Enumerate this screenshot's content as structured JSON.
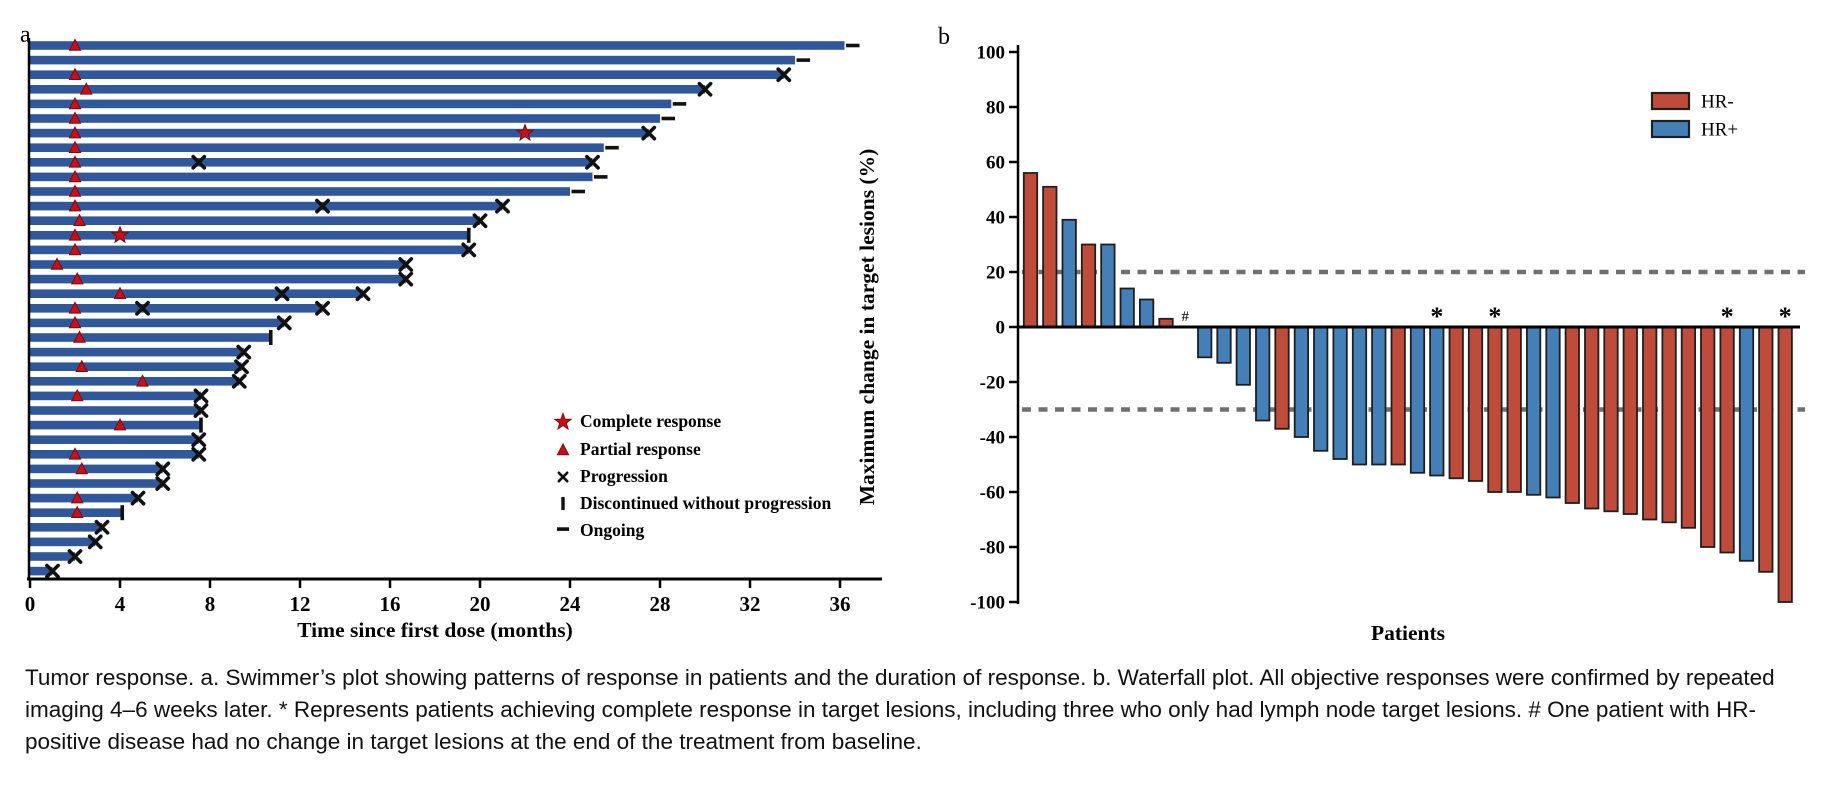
{
  "figure": {
    "panel_a_label": "a",
    "panel_b_label": "b"
  },
  "caption": "Tumor response. a. Swimmer’s plot showing patterns of response in patients and the duration of response. b. Waterfall plot. All objective responses were confirmed by repeated imaging 4–6 weeks later. * Represents patients achieving complete response in target lesions, including three who only had lymph node target lesions. # One patient with HR-positive disease had no change in target lesions at the end of the treatment from baseline.",
  "colors": {
    "swimmer_bar": "#31579B",
    "marker_red": "#C3121A",
    "marker_red_edge": "#7E090D",
    "marker_black": "#111111",
    "hr_neg": "#BF4B3B",
    "hr_pos": "#4480B7",
    "bar_outline": "#1F1F1F",
    "dashed_line": "#707070",
    "axis_black": "#000000"
  },
  "chart_data": [
    {
      "id": "swimmer",
      "type": "bar",
      "orientation": "horizontal",
      "xlabel": "Time since first dose (months)",
      "xlim": [
        0,
        38
      ],
      "xticks": [
        0,
        4,
        8,
        12,
        16,
        20,
        24,
        28,
        32,
        36
      ],
      "legend": [
        {
          "marker": "star",
          "label": "Complete response"
        },
        {
          "marker": "triangle",
          "label": "Partial response"
        },
        {
          "marker": "cross",
          "label": "Progression"
        },
        {
          "marker": "vbar",
          "label": "Discontinued without progression"
        },
        {
          "marker": "dash",
          "label": "Ongoing"
        }
      ],
      "patients": [
        {
          "duration": 36.2,
          "pr": 2,
          "cr": null,
          "prog": [],
          "end": "ongoing"
        },
        {
          "duration": 34.0,
          "pr": null,
          "cr": null,
          "prog": [],
          "end": "ongoing"
        },
        {
          "duration": 33.5,
          "pr": 2,
          "cr": null,
          "prog": [],
          "end": "prog"
        },
        {
          "duration": 30.0,
          "pr": 2.5,
          "cr": null,
          "prog": [],
          "end": "prog"
        },
        {
          "duration": 28.5,
          "pr": 2,
          "cr": null,
          "prog": [],
          "end": "ongoing"
        },
        {
          "duration": 28.0,
          "pr": 2,
          "cr": null,
          "prog": [],
          "end": "ongoing"
        },
        {
          "duration": 27.5,
          "pr": 2,
          "cr": 22,
          "prog": [],
          "end": "prog"
        },
        {
          "duration": 25.5,
          "pr": 2,
          "cr": null,
          "prog": [],
          "end": "ongoing"
        },
        {
          "duration": 25.0,
          "pr": 2,
          "cr": null,
          "prog": [
            7.5
          ],
          "end": "prog"
        },
        {
          "duration": 25.0,
          "pr": 2,
          "cr": null,
          "prog": [],
          "end": "ongoing"
        },
        {
          "duration": 24.0,
          "pr": 2,
          "cr": null,
          "prog": [],
          "end": "ongoing"
        },
        {
          "duration": 21.0,
          "pr": 2,
          "cr": null,
          "prog": [
            13
          ],
          "end": "prog"
        },
        {
          "duration": 20.0,
          "pr": 2.2,
          "cr": null,
          "prog": [],
          "end": "prog"
        },
        {
          "duration": 19.5,
          "pr": 2,
          "cr": 4,
          "prog": [],
          "end": "disc"
        },
        {
          "duration": 19.5,
          "pr": 2,
          "cr": null,
          "prog": [],
          "end": "prog"
        },
        {
          "duration": 16.7,
          "pr": 1.2,
          "cr": null,
          "prog": [],
          "end": "prog"
        },
        {
          "duration": 16.7,
          "pr": 2.1,
          "cr": null,
          "prog": [],
          "end": "prog"
        },
        {
          "duration": 14.8,
          "pr": 4,
          "cr": null,
          "prog": [
            11.2
          ],
          "end": "prog"
        },
        {
          "duration": 13.0,
          "pr": 2,
          "cr": null,
          "prog": [
            5
          ],
          "end": "prog"
        },
        {
          "duration": 11.3,
          "pr": 2,
          "cr": null,
          "prog": [],
          "end": "prog"
        },
        {
          "duration": 10.7,
          "pr": 2.2,
          "cr": null,
          "prog": [],
          "end": "disc"
        },
        {
          "duration": 9.5,
          "pr": null,
          "cr": null,
          "prog": [],
          "end": "prog"
        },
        {
          "duration": 9.4,
          "pr": 2.3,
          "cr": null,
          "prog": [],
          "end": "prog"
        },
        {
          "duration": 9.3,
          "pr": 5,
          "cr": null,
          "prog": [],
          "end": "prog"
        },
        {
          "duration": 7.6,
          "pr": 2.1,
          "cr": null,
          "prog": [],
          "end": "prog"
        },
        {
          "duration": 7.6,
          "pr": null,
          "cr": null,
          "prog": [],
          "end": "prog"
        },
        {
          "duration": 7.6,
          "pr": 4,
          "cr": null,
          "prog": [],
          "end": "disc"
        },
        {
          "duration": 7.5,
          "pr": null,
          "cr": null,
          "prog": [],
          "end": "prog"
        },
        {
          "duration": 7.5,
          "pr": 2,
          "cr": null,
          "prog": [],
          "end": "prog"
        },
        {
          "duration": 5.9,
          "pr": 2.3,
          "cr": null,
          "prog": [],
          "end": "prog"
        },
        {
          "duration": 5.9,
          "pr": null,
          "cr": null,
          "prog": [],
          "end": "prog"
        },
        {
          "duration": 4.8,
          "pr": 2.1,
          "cr": null,
          "prog": [],
          "end": "prog"
        },
        {
          "duration": 4.1,
          "pr": 2.1,
          "cr": null,
          "prog": [],
          "end": "disc"
        },
        {
          "duration": 3.2,
          "pr": null,
          "cr": null,
          "prog": [],
          "end": "prog"
        },
        {
          "duration": 2.9,
          "pr": null,
          "cr": null,
          "prog": [],
          "end": "prog"
        },
        {
          "duration": 2.0,
          "pr": null,
          "cr": null,
          "prog": [],
          "end": "prog"
        },
        {
          "duration": 1.0,
          "pr": null,
          "cr": null,
          "prog": [],
          "end": "prog"
        }
      ]
    },
    {
      "id": "waterfall",
      "type": "bar",
      "orientation": "vertical",
      "ylabel": "Maximum change in target lesions (%)",
      "xlabel": "Patients",
      "ylim": [
        -100,
        100
      ],
      "yticks": [
        100,
        80,
        60,
        40,
        20,
        0,
        -20,
        -40,
        -60,
        -80,
        -100
      ],
      "reference_lines": [
        20,
        -30
      ],
      "legend": [
        {
          "label": "HR-",
          "color_key": "hr_neg"
        },
        {
          "label": "HR+",
          "color_key": "hr_pos"
        }
      ],
      "patients": [
        {
          "value": 56,
          "hr": "HR-"
        },
        {
          "value": 51,
          "hr": "HR-"
        },
        {
          "value": 39,
          "hr": "HR+"
        },
        {
          "value": 30,
          "hr": "HR-"
        },
        {
          "value": 30,
          "hr": "HR+"
        },
        {
          "value": 14,
          "hr": "HR+"
        },
        {
          "value": 10,
          "hr": "HR+"
        },
        {
          "value": 3,
          "hr": "HR-"
        },
        {
          "value": 0,
          "hr": "HR+",
          "annotation": "#"
        },
        {
          "value": -11,
          "hr": "HR+"
        },
        {
          "value": -13,
          "hr": "HR+"
        },
        {
          "value": -21,
          "hr": "HR+"
        },
        {
          "value": -34,
          "hr": "HR+"
        },
        {
          "value": -37,
          "hr": "HR-"
        },
        {
          "value": -40,
          "hr": "HR+"
        },
        {
          "value": -45,
          "hr": "HR+"
        },
        {
          "value": -48,
          "hr": "HR+"
        },
        {
          "value": -50,
          "hr": "HR+"
        },
        {
          "value": -50,
          "hr": "HR+"
        },
        {
          "value": -50,
          "hr": "HR-"
        },
        {
          "value": -53,
          "hr": "HR+"
        },
        {
          "value": -54,
          "hr": "HR+",
          "annotation": "*"
        },
        {
          "value": -55,
          "hr": "HR-"
        },
        {
          "value": -56,
          "hr": "HR-"
        },
        {
          "value": -60,
          "hr": "HR-",
          "annotation": "*"
        },
        {
          "value": -60,
          "hr": "HR-"
        },
        {
          "value": -61,
          "hr": "HR+"
        },
        {
          "value": -62,
          "hr": "HR+"
        },
        {
          "value": -64,
          "hr": "HR-"
        },
        {
          "value": -66,
          "hr": "HR-"
        },
        {
          "value": -67,
          "hr": "HR-"
        },
        {
          "value": -68,
          "hr": "HR-"
        },
        {
          "value": -70,
          "hr": "HR-"
        },
        {
          "value": -71,
          "hr": "HR-"
        },
        {
          "value": -73,
          "hr": "HR-"
        },
        {
          "value": -80,
          "hr": "HR-"
        },
        {
          "value": -82,
          "hr": "HR-",
          "annotation": "*"
        },
        {
          "value": -85,
          "hr": "HR+"
        },
        {
          "value": -89,
          "hr": "HR-"
        },
        {
          "value": -100,
          "hr": "HR-",
          "annotation": "*"
        }
      ]
    }
  ]
}
